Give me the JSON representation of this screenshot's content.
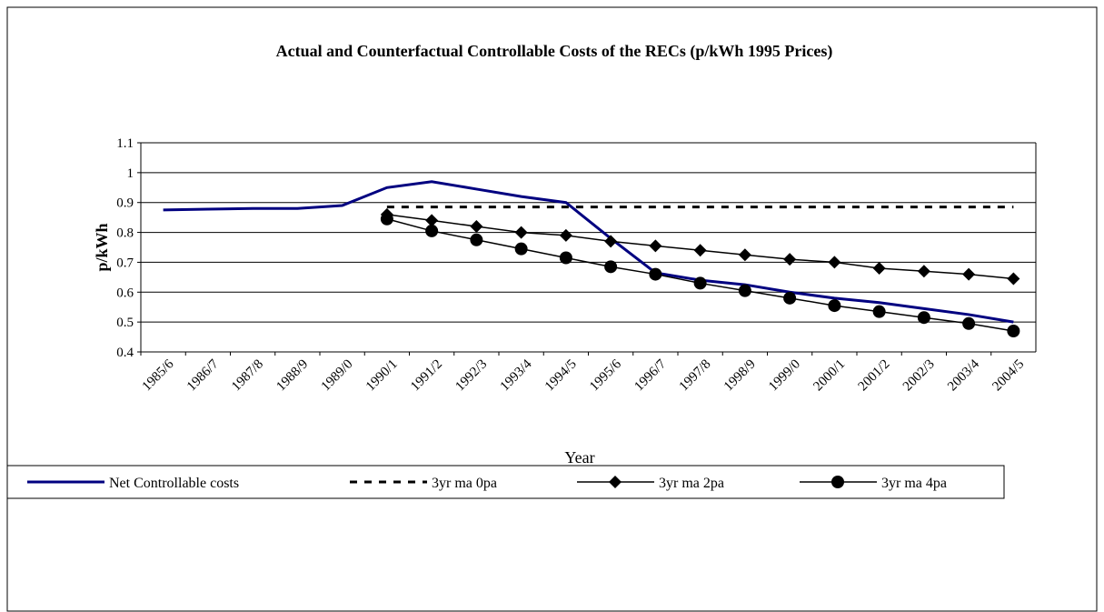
{
  "chart_data": {
    "type": "line",
    "title": "Actual and Counterfactual Controllable Costs of the RECs (p/kWh 1995 Prices)",
    "x_label": "Year",
    "y_label": "p/kWh",
    "categories": [
      "1985/6",
      "1986/7",
      "1987/8",
      "1988/9",
      "1989/0",
      "1990/1",
      "1991/2",
      "1992/3",
      "1993/4",
      "1994/5",
      "1995/6",
      "1996/7",
      "1997/8",
      "1998/9",
      "1999/0",
      "2000/1",
      "2001/2",
      "2002/3",
      "2003/4",
      "2004/5"
    ],
    "ylim": [
      0.4,
      1.1
    ],
    "yticks": [
      0.4,
      0.5,
      0.6,
      0.7,
      0.8,
      0.9,
      1,
      1.1
    ],
    "grid": true,
    "legend": "bottom",
    "series": [
      {
        "name": "Net Controllable costs",
        "color": "#000080",
        "dash": "solid",
        "marker": "none",
        "values": [
          0.875,
          0.878,
          0.88,
          0.88,
          0.89,
          0.95,
          0.97,
          0.945,
          0.92,
          0.9,
          0.78,
          0.665,
          0.64,
          0.625,
          0.6,
          0.58,
          0.565,
          0.545,
          0.525,
          0.5
        ]
      },
      {
        "name": "3yr ma 0pa",
        "color": "#000000",
        "dash": "dashed",
        "marker": "none",
        "values": [
          null,
          null,
          null,
          null,
          null,
          0.885,
          0.885,
          0.885,
          0.885,
          0.885,
          0.885,
          0.885,
          0.885,
          0.885,
          0.885,
          0.885,
          0.885,
          0.885,
          0.885,
          0.885
        ]
      },
      {
        "name": "3yr ma 2pa",
        "color": "#000000",
        "dash": "solid",
        "marker": "diamond",
        "values": [
          null,
          null,
          null,
          null,
          null,
          0.86,
          0.84,
          0.82,
          0.8,
          0.79,
          0.77,
          0.755,
          0.74,
          0.725,
          0.71,
          0.7,
          0.68,
          0.67,
          0.66,
          0.645
        ]
      },
      {
        "name": "3yr ma 4pa",
        "color": "#000000",
        "dash": "solid",
        "marker": "circle",
        "values": [
          null,
          null,
          null,
          null,
          null,
          0.845,
          0.805,
          0.775,
          0.745,
          0.715,
          0.685,
          0.66,
          0.63,
          0.605,
          0.58,
          0.555,
          0.535,
          0.515,
          0.495,
          0.47
        ]
      }
    ]
  }
}
